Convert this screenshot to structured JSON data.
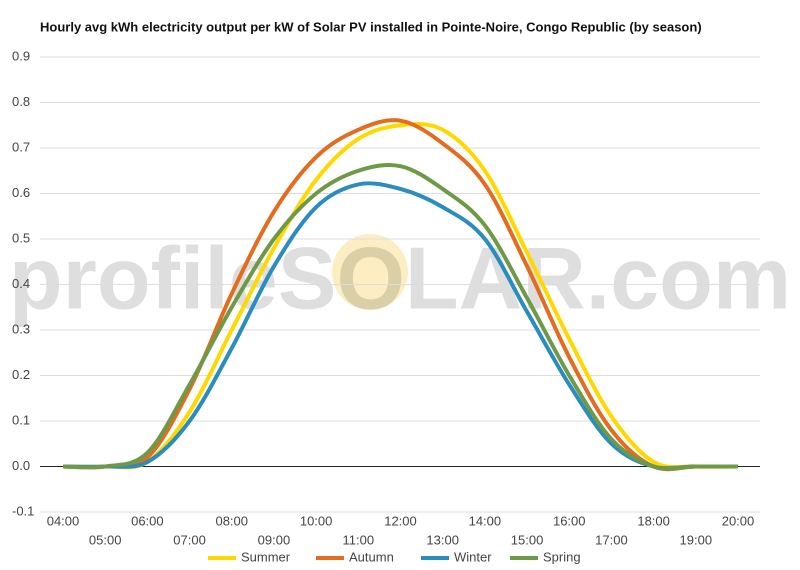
{
  "chart_data": {
    "type": "line",
    "title": "Hourly avg kWh electricity output per kW of Solar PV installed in Pointe-Noire, Congo Republic (by season)",
    "watermark": "profileSOLAR.com",
    "categories": [
      "04:00",
      "05:00",
      "06:00",
      "07:00",
      "08:00",
      "09:00",
      "10:00",
      "11:00",
      "12:00",
      "13:00",
      "14:00",
      "15:00",
      "16:00",
      "17:00",
      "18:00",
      "19:00",
      "20:00"
    ],
    "series": [
      {
        "name": "Summer",
        "color": "#ffd800",
        "values": [
          0,
          0,
          0.01,
          0.12,
          0.3,
          0.48,
          0.63,
          0.72,
          0.75,
          0.74,
          0.65,
          0.47,
          0.28,
          0.11,
          0.01,
          0,
          0
        ]
      },
      {
        "name": "Autumn",
        "color": "#e36c1e",
        "values": [
          0,
          0,
          0.02,
          0.17,
          0.38,
          0.56,
          0.68,
          0.74,
          0.76,
          0.71,
          0.62,
          0.44,
          0.24,
          0.08,
          0,
          0,
          0
        ]
      },
      {
        "name": "Winter",
        "color": "#2b8cbe",
        "values": [
          0,
          0,
          0.01,
          0.1,
          0.26,
          0.44,
          0.57,
          0.62,
          0.61,
          0.57,
          0.5,
          0.34,
          0.18,
          0.05,
          0,
          0,
          0
        ]
      },
      {
        "name": "Spring",
        "color": "#6e9a48",
        "values": [
          0,
          0,
          0.03,
          0.18,
          0.35,
          0.5,
          0.6,
          0.65,
          0.66,
          0.61,
          0.53,
          0.37,
          0.2,
          0.06,
          0,
          0,
          0
        ]
      }
    ],
    "ylim": [
      -0.1,
      0.9
    ],
    "yticks": [
      -0.1,
      {
        "value": 0,
        "label": "0.0"
      },
      0.1,
      0.2,
      0.3,
      0.4,
      0.5,
      0.6,
      0.7,
      0.8,
      0.9
    ],
    "grid": true
  }
}
